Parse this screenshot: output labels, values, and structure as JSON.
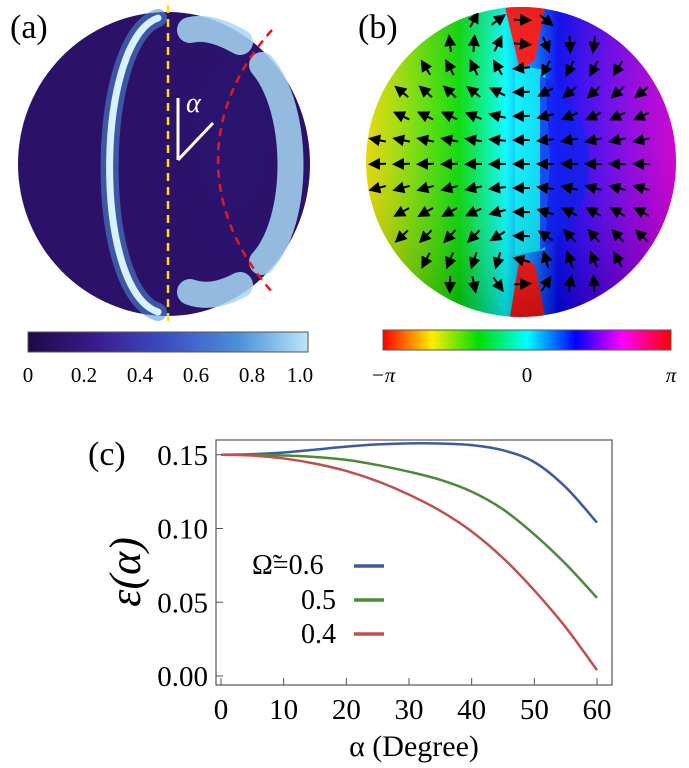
{
  "panels": {
    "a": {
      "label": "(a)",
      "angle_label": "α",
      "colorbar": {
        "ticks": [
          "0",
          "0.2",
          "0.4",
          "0.6",
          "0.8",
          "1.0"
        ],
        "colors": [
          "#1c0a46",
          "#3b1c8f",
          "#3d4fc4",
          "#4c8fd8",
          "#b9e6fa"
        ]
      }
    },
    "b": {
      "label": "(b)",
      "colorbar": {
        "ticks": [
          "−π",
          "0",
          "π"
        ],
        "colors": [
          "#ff0000",
          "#ffee00",
          "#00dd00",
          "#00ffff",
          "#0000ff",
          "#ff00ff",
          "#ff0000"
        ]
      }
    },
    "c": {
      "label": "(c)"
    }
  },
  "chart_data": {
    "type": "line",
    "title": "",
    "xlabel": "α (Degree)",
    "ylabel": "ε(α)",
    "xlim": [
      0,
      60
    ],
    "ylim": [
      0,
      0.16
    ],
    "xticks": [
      "0",
      "10",
      "20",
      "30",
      "40",
      "50",
      "60"
    ],
    "yticks": [
      "0.00",
      "0.05",
      "0.10",
      "0.15"
    ],
    "x": [
      0,
      5,
      10,
      15,
      20,
      25,
      30,
      35,
      40,
      45,
      50,
      55,
      60
    ],
    "series": [
      {
        "name": "Ω̃=0.6",
        "color": "#3b5b9d",
        "values": [
          0.15,
          0.1504,
          0.1515,
          0.1535,
          0.1555,
          0.157,
          0.1577,
          0.1576,
          0.1565,
          0.153,
          0.145,
          0.128,
          0.104
        ]
      },
      {
        "name": "0.5",
        "color": "#4a8a3a",
        "values": [
          0.15,
          0.15,
          0.1495,
          0.1485,
          0.1465,
          0.143,
          0.1385,
          0.133,
          0.125,
          0.113,
          0.096,
          0.076,
          0.053
        ]
      },
      {
        "name": "0.4",
        "color": "#c0504d",
        "values": [
          0.15,
          0.1495,
          0.1475,
          0.144,
          0.139,
          0.132,
          0.123,
          0.112,
          0.098,
          0.08,
          0.058,
          0.033,
          0.004
        ]
      }
    ],
    "grid": false,
    "legend": "left"
  }
}
